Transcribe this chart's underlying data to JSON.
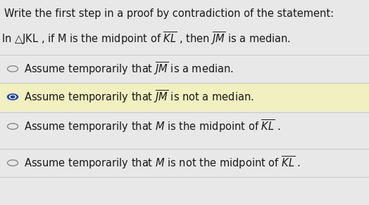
{
  "bg_color": "#e8e8e8",
  "title_text": "Write the first step in a proof by contradiction of the statement:",
  "statement_text": "In △JKL , if M is the midpoint of $\\overline{KL}$ , then $\\overline{JM}$ is a median.",
  "options": [
    {
      "label": "Assume temporarily that $\\overline{JM}$ is a median.",
      "selected": false,
      "highlight": false
    },
    {
      "label": "Assume temporarily that $\\overline{JM}$ is not a median.",
      "selected": true,
      "highlight": true
    },
    {
      "label": "Assume temporarily that $M$ is the midpoint of $\\overline{KL}$ .",
      "selected": false,
      "highlight": false
    },
    {
      "label": "Assume temporarily that $M$ is not the midpoint of $\\overline{KL}$ .",
      "selected": false,
      "highlight": false
    }
  ],
  "highlight_color": "#f0f0c0",
  "selected_dot_color": "#2244aa",
  "text_color": "#1a1a1a",
  "divider_color": "#c0c0c0",
  "font_size": 10.5,
  "title_font_size": 10.5
}
